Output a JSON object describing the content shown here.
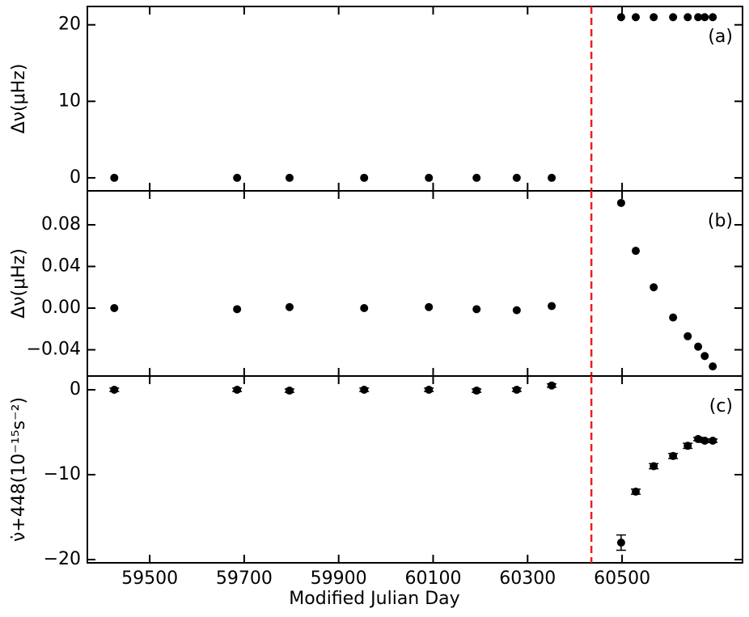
{
  "chart_data": [
    {
      "type": "scatter",
      "label": "(a)",
      "ylabel": "Δν(μHz)",
      "color": "#000000",
      "x": [
        59425,
        59685,
        59796,
        59954,
        60091,
        60192,
        60277,
        60351,
        60498,
        60529,
        60567,
        60608,
        60639,
        60661,
        60675,
        60692
      ],
      "values": [
        0,
        0,
        0,
        0,
        0,
        0,
        0,
        0,
        21,
        21,
        21,
        21,
        21,
        21,
        21,
        21
      ],
      "xlim": [
        59368,
        60755
      ],
      "ylim": [
        -1.7,
        22.4
      ],
      "yticks": [
        0,
        10,
        20
      ],
      "vline": 60435,
      "vline_color": "#ee1c1c"
    },
    {
      "type": "scatter",
      "label": "(b)",
      "ylabel": "Δν(μHz)",
      "color": "#000000",
      "x": [
        59425,
        59685,
        59796,
        59954,
        60091,
        60192,
        60277,
        60351,
        60498,
        60529,
        60567,
        60608,
        60639,
        60661,
        60675,
        60692
      ],
      "values": [
        0,
        -0.001,
        0.001,
        0,
        0.001,
        -0.001,
        -0.002,
        0.002,
        0.101,
        0.055,
        0.02,
        -0.009,
        -0.027,
        -0.037,
        -0.046,
        -0.056
      ],
      "xlim": [
        59368,
        60755
      ],
      "ylim": [
        -0.0652,
        0.1126
      ],
      "yticks": [
        {
          "value": -0.04,
          "label": "−0.04"
        },
        {
          "value": 0,
          "label": "0.00"
        },
        0.04,
        0.08
      ],
      "vline": 60435,
      "vline_color": "#ee1c1c"
    },
    {
      "type": "scatter",
      "label": "(c)",
      "ylabel": "ν̇+448(10⁻¹⁵s⁻²)",
      "xlabel": "Modified Julian Day",
      "color": "#000000",
      "x": [
        59425,
        59685,
        59796,
        59954,
        60091,
        60192,
        60277,
        60351,
        60498,
        60529,
        60567,
        60608,
        60639,
        60661,
        60675,
        60692
      ],
      "values": [
        0,
        0,
        -0.1,
        0,
        0,
        -0.1,
        0,
        0.5,
        -18,
        -12,
        -9,
        -7.8,
        -6.6,
        -5.8,
        -6,
        -6
      ],
      "errors": [
        0.2,
        0.2,
        0.2,
        0.2,
        0.2,
        0.2,
        0.2,
        0.2,
        0.9,
        0.3,
        0.3,
        0.3,
        0.3,
        0.2,
        0.2,
        0.2
      ],
      "xlim": [
        59368,
        60755
      ],
      "ylim": [
        -20.38,
        1.62
      ],
      "yticks": [
        {
          "value": -20,
          "label": "−20"
        },
        {
          "value": -10,
          "label": "−10"
        },
        0
      ],
      "xticks": [
        59500,
        59700,
        59900,
        60100,
        60300,
        60500
      ],
      "vline": 60435,
      "vline_color": "#ee1c1c"
    }
  ]
}
